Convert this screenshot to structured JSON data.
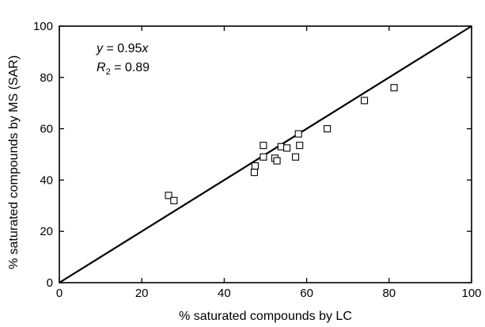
{
  "chart_data": {
    "type": "scatter",
    "xlabel": "% saturated compounds by LC",
    "ylabel": "% saturated compounds by MS (SAR)",
    "xlim": [
      0,
      100
    ],
    "ylim": [
      0,
      100
    ],
    "x_ticks": [
      "0",
      "20",
      "40",
      "60",
      "80",
      "100"
    ],
    "y_ticks": [
      "0",
      "20",
      "40",
      "60",
      "80",
      "100"
    ],
    "grid": false,
    "annotations": {
      "equation_var": "y",
      "equation_rest": " = 0.95",
      "equation_x": "x",
      "r_symbol": "R",
      "r_sub": "2",
      "r_value": " = 0.89"
    },
    "fit_line": {
      "slope": 0.95,
      "intercept": 0
    },
    "points": [
      {
        "x": 26.5,
        "y": 34
      },
      {
        "x": 27.8,
        "y": 32
      },
      {
        "x": 47.3,
        "y": 43
      },
      {
        "x": 47.5,
        "y": 45.5
      },
      {
        "x": 49.5,
        "y": 49
      },
      {
        "x": 49.5,
        "y": 53.5
      },
      {
        "x": 52.3,
        "y": 48.5
      },
      {
        "x": 52.8,
        "y": 47.5
      },
      {
        "x": 53.8,
        "y": 53
      },
      {
        "x": 55.2,
        "y": 52.5
      },
      {
        "x": 57.3,
        "y": 49
      },
      {
        "x": 58,
        "y": 58
      },
      {
        "x": 58.3,
        "y": 53.5
      },
      {
        "x": 65,
        "y": 60
      },
      {
        "x": 74,
        "y": 71
      },
      {
        "x": 81.2,
        "y": 76
      }
    ]
  }
}
